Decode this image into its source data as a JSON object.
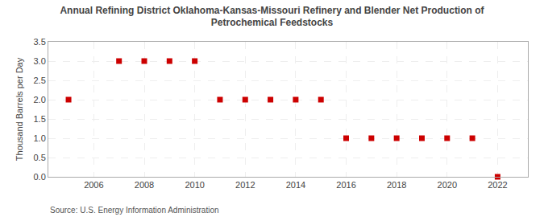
{
  "chart_data": {
    "type": "scatter",
    "title": "Annual Refining District Oklahoma-Kansas-Missouri Refinery and Blender Net Production of\nPetrochemical Feedstocks",
    "y_label": "Thousand Barrels per Day",
    "annotations": [
      "Source: U.S. Energy Information Administration"
    ],
    "x": [
      2005,
      2007,
      2008,
      2009,
      2010,
      2011,
      2012,
      2013,
      2014,
      2015,
      2016,
      2017,
      2018,
      2019,
      2020,
      2021,
      2022
    ],
    "values": [
      2.0,
      3.0,
      3.0,
      3.0,
      3.0,
      2.0,
      2.0,
      2.0,
      2.0,
      2.0,
      1.0,
      1.0,
      1.0,
      1.0,
      1.0,
      1.0,
      0.0
    ],
    "color": "#cc0000",
    "marker": "square",
    "xlim": [
      2004.2,
      2023.2
    ],
    "xticks": [
      2006,
      2008,
      2010,
      2012,
      2014,
      2016,
      2018,
      2020,
      2022
    ],
    "ylim": [
      0.0,
      3.5
    ],
    "yticks": [
      {
        "value": 0.0,
        "label": "0.0"
      },
      0.5,
      {
        "value": 1.0,
        "label": "1.0"
      },
      1.5,
      {
        "value": 2.0,
        "label": "2.0"
      },
      2.5,
      {
        "value": 3.0,
        "label": "3.0"
      },
      3.5
    ],
    "grid": true
  }
}
